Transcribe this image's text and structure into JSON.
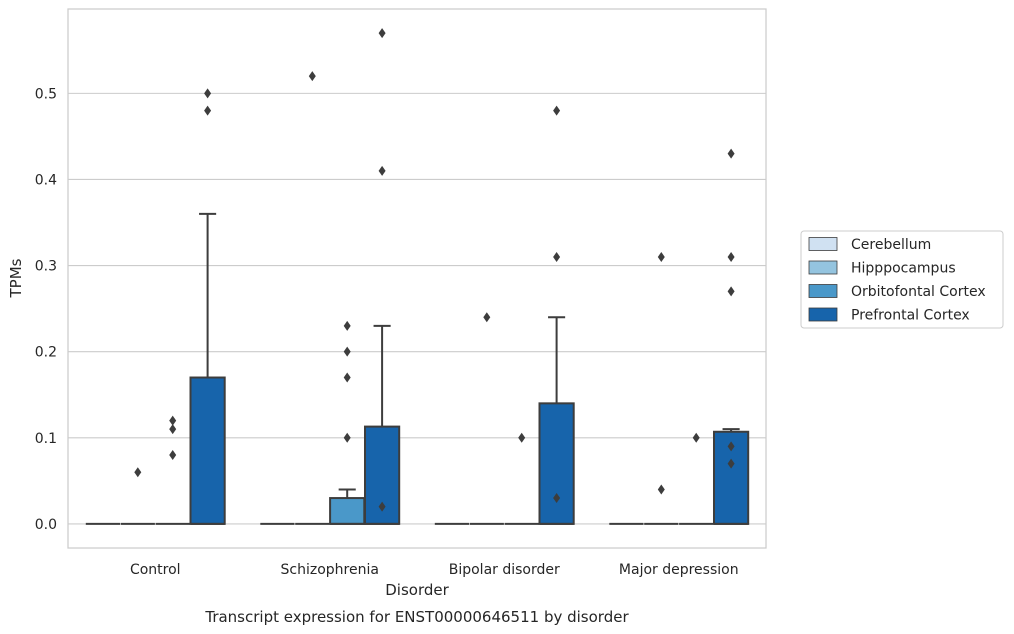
{
  "chart_data": {
    "type": "box",
    "caption": "Transcript expression for ENST00000646511 by disorder",
    "xlabel": "Disorder",
    "ylabel": "TPMs",
    "ylim": [
      -0.028,
      0.598
    ],
    "yticks": [
      0.0,
      0.1,
      0.2,
      0.3,
      0.4,
      0.5
    ],
    "ytick_labels": [
      "0.0",
      "0.1",
      "0.2",
      "0.3",
      "0.4",
      "0.5"
    ],
    "grid": "horizontal",
    "legend_position": "right-outside",
    "categories": [
      "Control",
      "Schizophrenia",
      "Bipolar disorder",
      "Major depression"
    ],
    "series": [
      {
        "name": "Cerebellum",
        "color": "#d0e1f2",
        "boxes": [
          {
            "q1": 0,
            "median": 0,
            "q3": 0,
            "whisker_low": 0,
            "whisker_high": 0,
            "outliers": []
          },
          {
            "q1": 0,
            "median": 0,
            "q3": 0,
            "whisker_low": 0,
            "whisker_high": 0,
            "outliers": []
          },
          {
            "q1": 0,
            "median": 0,
            "q3": 0,
            "whisker_low": 0,
            "whisker_high": 0,
            "outliers": []
          },
          {
            "q1": 0,
            "median": 0,
            "q3": 0,
            "whisker_low": 0,
            "whisker_high": 0,
            "outliers": []
          }
        ]
      },
      {
        "name": "Hipppocampus",
        "color": "#94c4df",
        "boxes": [
          {
            "q1": 0,
            "median": 0,
            "q3": 0,
            "whisker_low": 0,
            "whisker_high": 0,
            "outliers": [
              0.06
            ]
          },
          {
            "q1": 0,
            "median": 0,
            "q3": 0,
            "whisker_low": 0,
            "whisker_high": 0,
            "outliers": [
              0.52
            ]
          },
          {
            "q1": 0,
            "median": 0,
            "q3": 0,
            "whisker_low": 0,
            "whisker_high": 0,
            "outliers": [
              0.24
            ]
          },
          {
            "q1": 0,
            "median": 0,
            "q3": 0,
            "whisker_low": 0,
            "whisker_high": 0,
            "outliers": [
              0.04,
              0.31
            ]
          }
        ]
      },
      {
        "name": "Orbitofontal Cortex",
        "color": "#4a98c9",
        "boxes": [
          {
            "q1": 0,
            "median": 0,
            "q3": 0,
            "whisker_low": 0,
            "whisker_high": 0,
            "outliers": [
              0.08,
              0.11,
              0.12
            ]
          },
          {
            "q1": 0,
            "median": 0,
            "q3": 0.03,
            "whisker_low": 0,
            "whisker_high": 0.04,
            "outliers": [
              0.1,
              0.17,
              0.2,
              0.23
            ]
          },
          {
            "q1": 0,
            "median": 0,
            "q3": 0,
            "whisker_low": 0,
            "whisker_high": 0,
            "outliers": [
              0.1
            ]
          },
          {
            "q1": 0,
            "median": 0,
            "q3": 0,
            "whisker_low": 0,
            "whisker_high": 0,
            "outliers": [
              0.1
            ]
          }
        ]
      },
      {
        "name": "Prefrontal Cortex",
        "color": "#1764ab",
        "boxes": [
          {
            "q1": 0,
            "median": 0,
            "q3": 0.17,
            "whisker_low": 0,
            "whisker_high": 0.36,
            "outliers": [
              0.48,
              0.5
            ]
          },
          {
            "q1": 0,
            "median": 0,
            "q3": 0.113,
            "whisker_low": 0,
            "whisker_high": 0.23,
            "outliers": [
              0.02,
              0.41,
              0.57
            ]
          },
          {
            "q1": 0,
            "median": 0,
            "q3": 0.14,
            "whisker_low": 0,
            "whisker_high": 0.24,
            "outliers": [
              0.03,
              0.31,
              0.48
            ]
          },
          {
            "q1": 0,
            "median": 0,
            "q3": 0.107,
            "whisker_low": 0,
            "whisker_high": 0.11,
            "outliers": [
              0.07,
              0.09,
              0.27,
              0.31,
              0.43
            ]
          }
        ]
      }
    ]
  }
}
